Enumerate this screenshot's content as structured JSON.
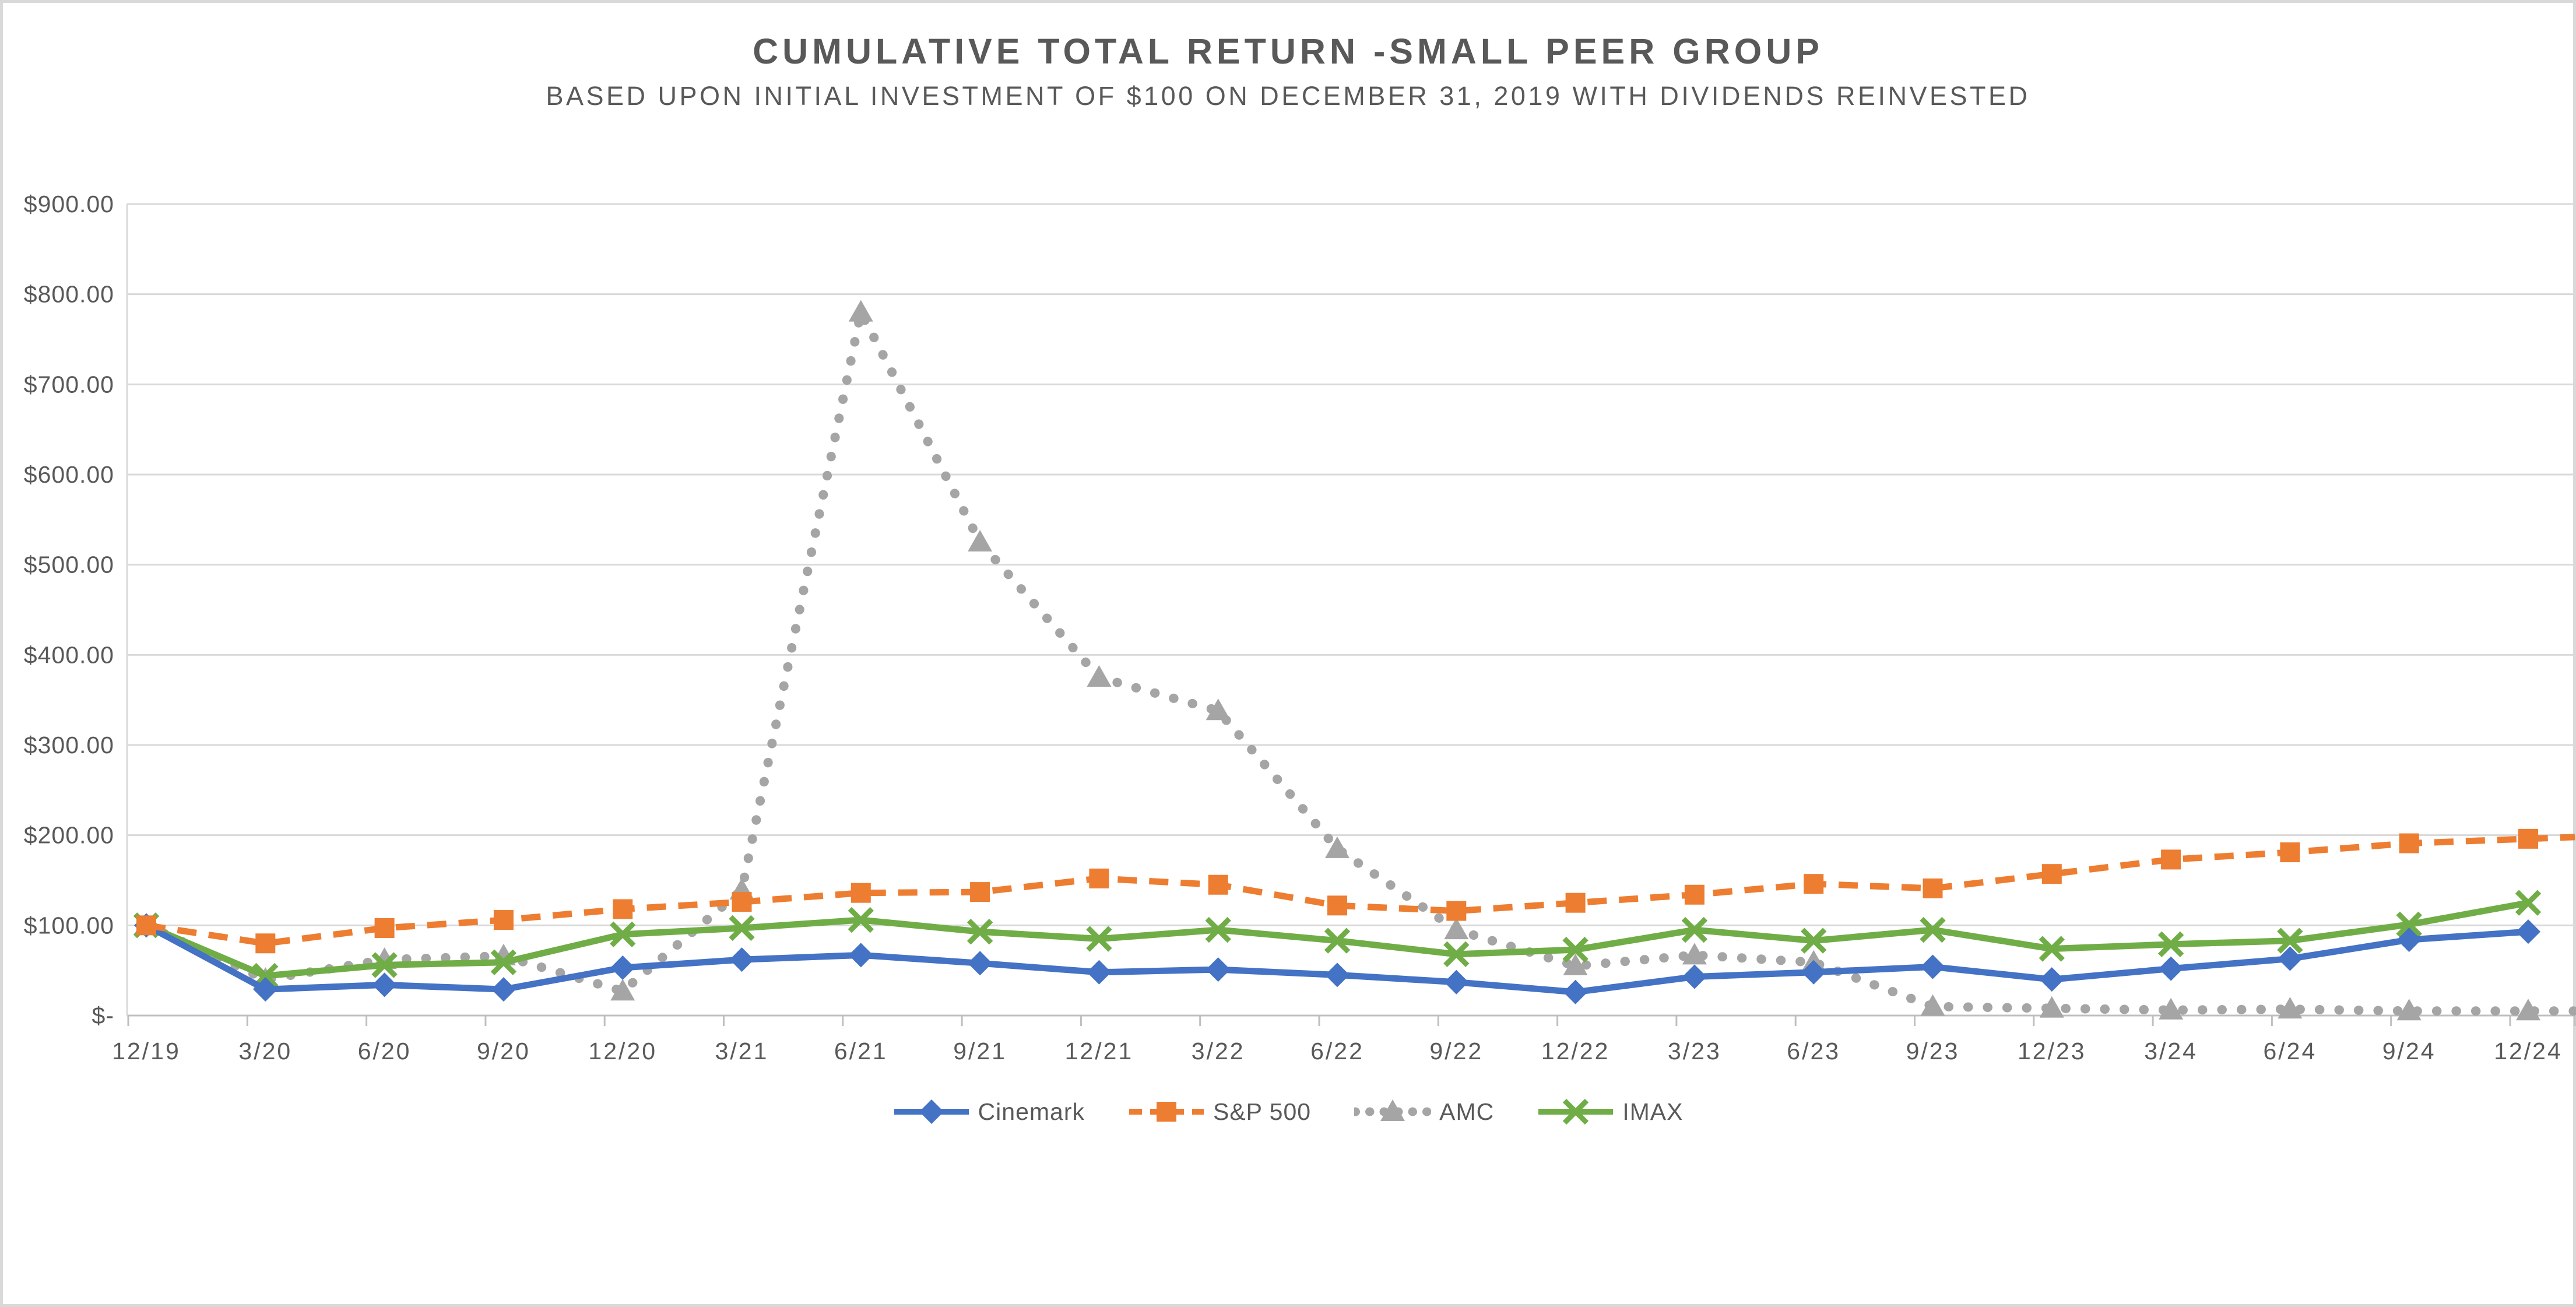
{
  "page": {
    "background": "#FFFFFF",
    "border_color": "#D9D9D9"
  },
  "header": {
    "title": "CUMULATIVE TOTAL RETURN -SMALL PEER GROUP",
    "subtitle": "BASED UPON INITIAL INVESTMENT OF $100 ON DECEMBER 31, 2019 WITH DIVIDENDS REINVESTED",
    "text_color": "#595959"
  },
  "chart_data": {
    "type": "line",
    "title": "CUMULATIVE TOTAL RETURN -SMALL PEER GROUP",
    "subtitle": "BASED UPON INITIAL INVESTMENT OF $100 ON DECEMBER 31, 2019 WITH DIVIDENDS REINVESTED",
    "categories": [
      "12/19",
      "3/20",
      "6/20",
      "9/20",
      "12/20",
      "3/21",
      "6/21",
      "9/21",
      "12/21",
      "3/22",
      "6/22",
      "9/22",
      "12/22",
      "3/23",
      "6/23",
      "9/23",
      "12/23",
      "3/24",
      "6/24",
      "9/24",
      "12/24"
    ],
    "series": [
      {
        "name": "Cinemark",
        "color": "#4472C4",
        "marker": "diamond",
        "line_style": "solid",
        "values": [
          100,
          29,
          34,
          29,
          53,
          62,
          67,
          58,
          48,
          51,
          45,
          37,
          26,
          43,
          48,
          54,
          40,
          52,
          63,
          84,
          93
        ]
      },
      {
        "name": "S&P 500",
        "color": "#ED7D31",
        "marker": "square",
        "line_style": "dashed",
        "values": [
          100,
          80,
          97,
          106,
          118,
          126,
          136,
          137,
          152,
          145,
          122,
          116,
          125,
          134,
          146,
          141,
          157,
          173,
          181,
          191,
          196
        ]
      },
      {
        "name": "AMC",
        "color": "#A5A5A5",
        "marker": "triangle",
        "line_style": "dotted",
        "values": [
          100,
          40,
          62,
          66,
          27,
          139,
          780,
          525,
          375,
          338,
          185,
          95,
          55,
          67,
          59,
          10,
          8,
          6,
          7,
          5,
          5
        ]
      },
      {
        "name": "IMAX",
        "color": "#70AD47",
        "marker": "x",
        "line_style": "solid",
        "values": [
          100,
          44,
          56,
          59,
          90,
          97,
          106,
          93,
          85,
          95,
          83,
          68,
          73,
          95,
          83,
          95,
          74,
          79,
          83,
          101,
          125
        ]
      }
    ],
    "draw_order": [
      "AMC",
      "IMAX",
      "Cinemark",
      "S&P 500"
    ],
    "y_axis": {
      "min": 0,
      "max": 900,
      "tick_step": 100,
      "tick_labels": [
        "$-",
        "$100.00",
        "$200.00",
        "$300.00",
        "$400.00",
        "$500.00",
        "$600.00",
        "$700.00",
        "$800.00",
        "$900.00"
      ],
      "label_color": "#595959"
    },
    "x_axis": {
      "label_color": "#595959"
    },
    "grid": {
      "show": true,
      "color": "#D9D9D9"
    },
    "axis_line_color": "#BFBFBF",
    "legend": {
      "position": "bottom"
    }
  }
}
